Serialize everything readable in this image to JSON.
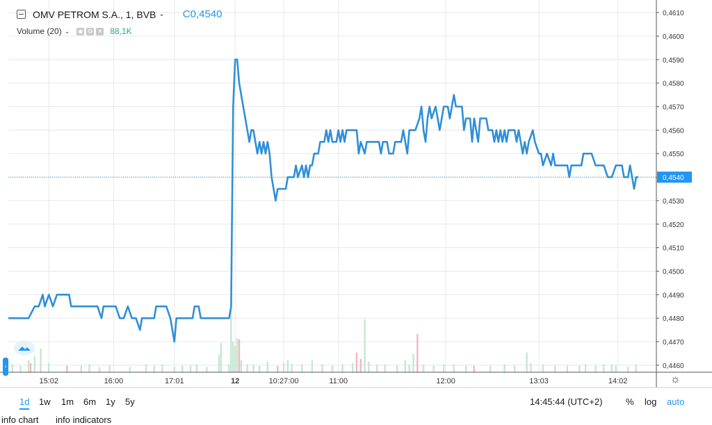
{
  "header": {
    "symbol_label": "OMV PETROM S.A., 1, BVB",
    "close_label": "C0,4540",
    "volume_label": "Volume (20)",
    "volume_value": "88,1K"
  },
  "colors": {
    "line": "#2e8fd8",
    "vol_up": "#c5e6d4",
    "vol_down": "#f2b9b9",
    "grid": "#e8e8e8",
    "price_tag": "#2196f3"
  },
  "icons": {
    "symbol": "minus-square-icon",
    "eye": "eye-icon",
    "settings": "gear-icon",
    "close": "close-icon",
    "chart_settings": "gear-icon"
  },
  "chart_data": {
    "type": "line",
    "ylim": [
      0.4457,
      0.4613
    ],
    "y_ticks": [
      "0,4610",
      "0,4600",
      "0,4590",
      "0,4580",
      "0,4570",
      "0,4560",
      "0,4550",
      "0,4540",
      "0,4530",
      "0,4520",
      "0,4510",
      "0,4500",
      "0,4490",
      "0,4480",
      "0,4470",
      "0,4460"
    ],
    "y_tick_values": [
      0.461,
      0.46,
      0.459,
      0.458,
      0.457,
      0.456,
      0.455,
      0.454,
      0.453,
      0.452,
      0.451,
      0.45,
      0.449,
      0.448,
      0.447,
      0.446
    ],
    "x_ticks": [
      {
        "label": "15:02",
        "t": 20
      },
      {
        "label": "16:00",
        "t": 52
      },
      {
        "label": "17:01",
        "t": 82
      },
      {
        "label": "12",
        "t": 112
      },
      {
        "label": "10:27:00",
        "t": 136
      },
      {
        "label": "11:00",
        "t": 163
      },
      {
        "label": "12:00",
        "t": 216
      },
      {
        "label": "13:03",
        "t": 262
      },
      {
        "label": "14:02",
        "t": 301
      }
    ],
    "x_range": [
      0,
      320
    ],
    "last_price": 0.454,
    "last_price_label": "0,4540",
    "series": [
      {
        "values": [
          [
            0,
            0.448
          ],
          [
            10,
            0.448
          ],
          [
            13,
            0.4485
          ],
          [
            15,
            0.4485
          ],
          [
            17,
            0.449
          ],
          [
            18,
            0.4485
          ],
          [
            20,
            0.449
          ],
          [
            22,
            0.4485
          ],
          [
            24,
            0.449
          ],
          [
            30,
            0.449
          ],
          [
            31,
            0.4485
          ],
          [
            44,
            0.4485
          ],
          [
            46,
            0.448
          ],
          [
            47,
            0.4485
          ],
          [
            53,
            0.4485
          ],
          [
            55,
            0.448
          ],
          [
            57,
            0.448
          ],
          [
            59,
            0.4485
          ],
          [
            61,
            0.448
          ],
          [
            63,
            0.448
          ],
          [
            65,
            0.4475
          ],
          [
            66,
            0.448
          ],
          [
            72,
            0.448
          ],
          [
            73,
            0.4485
          ],
          [
            78,
            0.4485
          ],
          [
            80,
            0.448
          ],
          [
            81,
            0.4475
          ],
          [
            82,
            0.447
          ],
          [
            83,
            0.448
          ],
          [
            87,
            0.448
          ],
          [
            89,
            0.448
          ],
          [
            91,
            0.448
          ],
          [
            92,
            0.4485
          ],
          [
            94,
            0.4485
          ],
          [
            95,
            0.448
          ],
          [
            109,
            0.448
          ],
          [
            110,
            0.4485
          ],
          [
            111,
            0.457
          ],
          [
            112,
            0.459
          ],
          [
            113,
            0.459
          ],
          [
            114,
            0.458
          ],
          [
            116,
            0.457
          ],
          [
            117,
            0.4565
          ],
          [
            118,
            0.456
          ],
          [
            119,
            0.4555
          ],
          [
            120,
            0.456
          ],
          [
            121,
            0.456
          ],
          [
            122,
            0.4555
          ],
          [
            123,
            0.455
          ],
          [
            124,
            0.4555
          ],
          [
            125,
            0.455
          ],
          [
            126,
            0.4555
          ],
          [
            127,
            0.455
          ],
          [
            128,
            0.4555
          ],
          [
            129,
            0.455
          ],
          [
            130,
            0.454
          ],
          [
            131,
            0.4535
          ],
          [
            132,
            0.453
          ],
          [
            133,
            0.4535
          ],
          [
            135,
            0.4535
          ],
          [
            137,
            0.4535
          ],
          [
            138,
            0.454
          ],
          [
            141,
            0.454
          ],
          [
            142,
            0.4545
          ],
          [
            143,
            0.454
          ],
          [
            145,
            0.4545
          ],
          [
            146,
            0.454
          ],
          [
            147,
            0.4545
          ],
          [
            148,
            0.454
          ],
          [
            149,
            0.4545
          ],
          [
            150,
            0.4545
          ],
          [
            151,
            0.455
          ],
          [
            153,
            0.455
          ],
          [
            154,
            0.4555
          ],
          [
            156,
            0.4555
          ],
          [
            157,
            0.456
          ],
          [
            158,
            0.4555
          ],
          [
            159,
            0.456
          ],
          [
            160,
            0.4555
          ],
          [
            162,
            0.4555
          ],
          [
            163,
            0.456
          ],
          [
            164,
            0.4555
          ],
          [
            165,
            0.456
          ],
          [
            166,
            0.4555
          ],
          [
            167,
            0.456
          ],
          [
            172,
            0.456
          ],
          [
            173,
            0.455
          ],
          [
            174,
            0.4555
          ],
          [
            176,
            0.455
          ],
          [
            177,
            0.4555
          ],
          [
            183,
            0.4555
          ],
          [
            184,
            0.455
          ],
          [
            185,
            0.4555
          ],
          [
            187,
            0.4555
          ],
          [
            188,
            0.455
          ],
          [
            190,
            0.455
          ],
          [
            191,
            0.4555
          ],
          [
            193,
            0.4555
          ],
          [
            194,
            0.4555
          ],
          [
            195,
            0.456
          ],
          [
            196,
            0.4555
          ],
          [
            197,
            0.455
          ],
          [
            198,
            0.456
          ],
          [
            201,
            0.456
          ],
          [
            203,
            0.4565
          ],
          [
            204,
            0.457
          ],
          [
            205,
            0.456
          ],
          [
            206,
            0.4555
          ],
          [
            207,
            0.4565
          ],
          [
            208,
            0.457
          ],
          [
            209,
            0.4565
          ],
          [
            211,
            0.457
          ],
          [
            213,
            0.456
          ],
          [
            214,
            0.4565
          ],
          [
            215,
            0.457
          ],
          [
            217,
            0.457
          ],
          [
            218,
            0.4565
          ],
          [
            219,
            0.457
          ],
          [
            220,
            0.4575
          ],
          [
            221,
            0.457
          ],
          [
            224,
            0.457
          ],
          [
            225,
            0.456
          ],
          [
            226,
            0.4565
          ],
          [
            228,
            0.4565
          ],
          [
            229,
            0.4555
          ],
          [
            230,
            0.4565
          ],
          [
            231,
            0.456
          ],
          [
            232,
            0.4555
          ],
          [
            233,
            0.4565
          ],
          [
            236,
            0.4565
          ],
          [
            237,
            0.456
          ],
          [
            239,
            0.456
          ],
          [
            240,
            0.4555
          ],
          [
            241,
            0.456
          ],
          [
            242,
            0.4555
          ],
          [
            243,
            0.456
          ],
          [
            244,
            0.4555
          ],
          [
            245,
            0.456
          ],
          [
            246,
            0.4555
          ],
          [
            247,
            0.456
          ],
          [
            250,
            0.456
          ],
          [
            251,
            0.4555
          ],
          [
            252,
            0.456
          ],
          [
            253,
            0.4555
          ],
          [
            254,
            0.455
          ],
          [
            255,
            0.4555
          ],
          [
            256,
            0.455
          ],
          [
            257,
            0.4555
          ],
          [
            259,
            0.456
          ],
          [
            260,
            0.4555
          ],
          [
            262,
            0.455
          ],
          [
            263,
            0.455
          ],
          [
            264,
            0.4545
          ],
          [
            266,
            0.455
          ],
          [
            268,
            0.4545
          ],
          [
            269,
            0.455
          ],
          [
            270,
            0.4545
          ],
          [
            276,
            0.4545
          ],
          [
            277,
            0.454
          ],
          [
            278,
            0.4545
          ],
          [
            283,
            0.4545
          ],
          [
            284,
            0.455
          ],
          [
            288,
            0.455
          ],
          [
            290,
            0.4545
          ],
          [
            294,
            0.4545
          ],
          [
            296,
            0.454
          ],
          [
            298,
            0.454
          ],
          [
            300,
            0.4545
          ],
          [
            303,
            0.4545
          ],
          [
            304,
            0.454
          ],
          [
            306,
            0.454
          ],
          [
            307,
            0.4545
          ],
          [
            308,
            0.454
          ],
          [
            309,
            0.4535
          ],
          [
            310,
            0.454
          ],
          [
            311,
            0.454
          ]
        ]
      }
    ],
    "volume": [
      [
        2,
        0.6,
        1
      ],
      [
        6,
        0.5,
        1
      ],
      [
        10,
        0.9,
        1
      ],
      [
        11,
        0.7,
        0
      ],
      [
        13,
        1.2,
        1
      ],
      [
        16,
        1.8,
        1
      ],
      [
        20,
        0.7,
        1
      ],
      [
        29,
        0.5,
        0
      ],
      [
        36,
        0.5,
        1
      ],
      [
        40,
        0.6,
        1
      ],
      [
        45,
        0.4,
        1
      ],
      [
        50,
        0.5,
        1
      ],
      [
        60,
        0.4,
        1
      ],
      [
        68,
        0.6,
        1
      ],
      [
        72,
        0.5,
        1
      ],
      [
        76,
        0.6,
        1
      ],
      [
        82,
        0.4,
        1
      ],
      [
        86,
        0.5,
        1
      ],
      [
        90,
        0.5,
        1
      ],
      [
        93,
        0.6,
        1
      ],
      [
        98,
        0.4,
        1
      ],
      [
        104,
        1.3,
        1
      ],
      [
        105,
        2.2,
        1
      ],
      [
        109,
        0.6,
        1
      ],
      [
        110,
        4.8,
        1
      ],
      [
        111,
        2.3,
        1
      ],
      [
        112,
        2.0,
        1
      ],
      [
        113,
        2.6,
        1
      ],
      [
        114,
        2.5,
        0
      ],
      [
        115,
        0.9,
        1
      ],
      [
        118,
        0.6,
        1
      ],
      [
        121,
        0.6,
        1
      ],
      [
        124,
        0.5,
        1
      ],
      [
        128,
        0.8,
        1
      ],
      [
        133,
        0.5,
        0
      ],
      [
        136,
        0.7,
        1
      ],
      [
        138,
        0.9,
        1
      ],
      [
        140,
        0.6,
        1
      ],
      [
        145,
        0.6,
        1
      ],
      [
        150,
        0.9,
        1
      ],
      [
        155,
        0.6,
        1
      ],
      [
        160,
        0.5,
        1
      ],
      [
        165,
        0.6,
        1
      ],
      [
        170,
        0.7,
        1
      ],
      [
        172,
        1.5,
        0
      ],
      [
        174,
        1.0,
        0
      ],
      [
        176,
        4.0,
        1
      ],
      [
        178,
        0.8,
        1
      ],
      [
        182,
        0.6,
        1
      ],
      [
        186,
        0.6,
        1
      ],
      [
        192,
        0.5,
        1
      ],
      [
        196,
        0.9,
        1
      ],
      [
        198,
        0.6,
        1
      ],
      [
        200,
        1.4,
        1
      ],
      [
        202,
        2.9,
        0
      ],
      [
        205,
        0.6,
        1
      ],
      [
        210,
        0.5,
        1
      ],
      [
        215,
        0.6,
        1
      ],
      [
        220,
        0.6,
        1
      ],
      [
        226,
        0.5,
        1
      ],
      [
        230,
        0.5,
        0
      ],
      [
        238,
        0.5,
        1
      ],
      [
        245,
        0.6,
        1
      ],
      [
        250,
        0.5,
        1
      ],
      [
        256,
        1.5,
        1
      ],
      [
        258,
        0.7,
        1
      ],
      [
        264,
        0.6,
        1
      ],
      [
        270,
        0.5,
        1
      ],
      [
        276,
        0.5,
        1
      ],
      [
        282,
        0.5,
        1
      ],
      [
        285,
        0.6,
        1
      ],
      [
        290,
        0.5,
        1
      ],
      [
        294,
        0.6,
        1
      ],
      [
        298,
        0.6,
        1
      ],
      [
        300,
        0.5,
        1
      ],
      [
        306,
        0.4,
        1
      ],
      [
        310,
        0.6,
        1
      ]
    ]
  },
  "bottom_bar": {
    "ranges": [
      "1d",
      "1w",
      "1m",
      "6m",
      "1y",
      "5y"
    ],
    "active_range": "1d",
    "clock": "14:45:44 (UTC+2)",
    "percent": "%",
    "log": "log",
    "auto": "auto"
  },
  "footer": {
    "info_chart": "info chart",
    "info_indicators": "info indicators"
  }
}
